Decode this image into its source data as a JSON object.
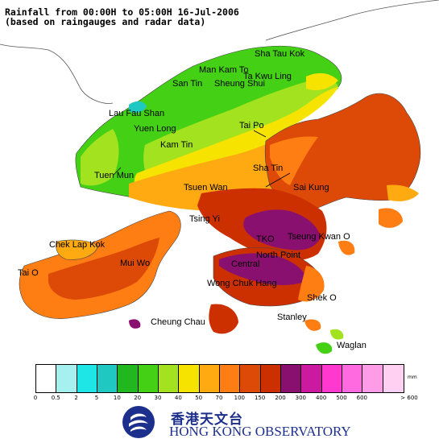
{
  "header": {
    "title_line1": "Rainfall from 00:00H to 05:00H 16-Jul-2006",
    "title_line2": "(based on raingauges and radar data)"
  },
  "places": [
    {
      "name": "Sha Tau Kok"
    },
    {
      "name": "Man Kam To"
    },
    {
      "name": "Ta Kwu Ling"
    },
    {
      "name": "San Tin"
    },
    {
      "name": "Sheung Shui"
    },
    {
      "name": "Lau Fau Shan"
    },
    {
      "name": "Yuen Long"
    },
    {
      "name": "Tai Po"
    },
    {
      "name": "Kam Tin"
    },
    {
      "name": "Tuen Mun"
    },
    {
      "name": "Sha Tin"
    },
    {
      "name": "Tsuen Wan"
    },
    {
      "name": "Sai Kung"
    },
    {
      "name": "Tsing Yi"
    },
    {
      "name": "Chek Lap Kok"
    },
    {
      "name": "TKO"
    },
    {
      "name": "Tseung Kwan O"
    },
    {
      "name": "North Point"
    },
    {
      "name": "Central"
    },
    {
      "name": "Mui Wo"
    },
    {
      "name": "Wong Chuk Hang"
    },
    {
      "name": "Tai O"
    },
    {
      "name": "Shek O"
    },
    {
      "name": "Cheung Chau"
    },
    {
      "name": "Stanley"
    },
    {
      "name": "Waglan"
    }
  ],
  "legend": {
    "unit": "mm",
    "thresholds": [
      "0",
      "0.5",
      "2",
      "5",
      "10",
      "20",
      "30",
      "40",
      "50",
      "70",
      "100",
      "150",
      "200",
      "300",
      "400",
      "500",
      "600",
      "> 600"
    ],
    "colors": [
      "#ffffff",
      "#a6f0f0",
      "#1ee6e6",
      "#1fc8c0",
      "#20b81e",
      "#44d014",
      "#a2e21e",
      "#f6e400",
      "#ffaa10",
      "#ff7e14",
      "#dd4a08",
      "#cc3000",
      "#8a1070",
      "#cc1aa0",
      "#ff38d0",
      "#ff6ae0",
      "#ff9ce8",
      "#ffd0f2"
    ]
  },
  "logo": {
    "name_cn": "香港天文台",
    "name_en": "HONG KONG OBSERVATORY"
  }
}
